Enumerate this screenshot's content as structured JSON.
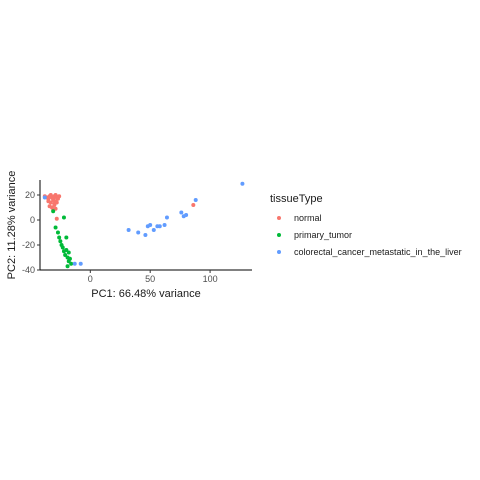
{
  "chart_data": {
    "type": "scatter",
    "xlabel": "PC1: 66.48% variance",
    "ylabel": "PC2: 11.28% variance",
    "xlim": [
      -42,
      135
    ],
    "ylim": [
      -40,
      32
    ],
    "x_ticks": [
      0,
      50,
      100
    ],
    "y_ticks": [
      -40,
      -20,
      0,
      20
    ],
    "grid": false,
    "legend": {
      "title": "tissueType",
      "placement": "right"
    },
    "series": [
      {
        "name": "normal",
        "color": "#F8766D",
        "x": [
          -38,
          -36,
          -35,
          -34,
          -33,
          -32,
          -31,
          -30,
          -29,
          -28,
          -27,
          -26,
          -35,
          -33,
          -31,
          -30,
          -29,
          -28,
          -34,
          -32,
          -30,
          -29,
          -31,
          -28,
          86
        ],
        "y": [
          19,
          18,
          17,
          19,
          20,
          18,
          17,
          19,
          20,
          18,
          17,
          19,
          15,
          14,
          16,
          13,
          15,
          14,
          11,
          10,
          12,
          9,
          8,
          1,
          12
        ]
      },
      {
        "name": "primary_tumor",
        "color": "#00BA38",
        "x": [
          -31,
          -29,
          -27,
          -26,
          -25,
          -24,
          -23,
          -22,
          -21,
          -20,
          -19,
          -18,
          -17,
          -20,
          -22,
          -18,
          -16,
          -19
        ],
        "y": [
          7,
          -6,
          -10,
          -14,
          -17,
          -20,
          -22,
          -25,
          -28,
          -24,
          -30,
          -33,
          -31,
          -14,
          2,
          -26,
          -35,
          -37
        ]
      },
      {
        "name": "colorectal_cancer_metastatic_in_the_liver",
        "color": "#619CFF",
        "x": [
          -38,
          -8,
          32,
          40,
          46,
          48,
          50,
          53,
          56,
          58,
          62,
          64,
          76,
          78,
          80,
          88,
          127,
          -13
        ],
        "y": [
          18,
          -35,
          -8,
          -10,
          -12,
          -5,
          -4,
          -8,
          -5,
          -5,
          -4,
          2,
          6,
          3,
          4,
          16,
          29,
          -35
        ]
      }
    ]
  }
}
